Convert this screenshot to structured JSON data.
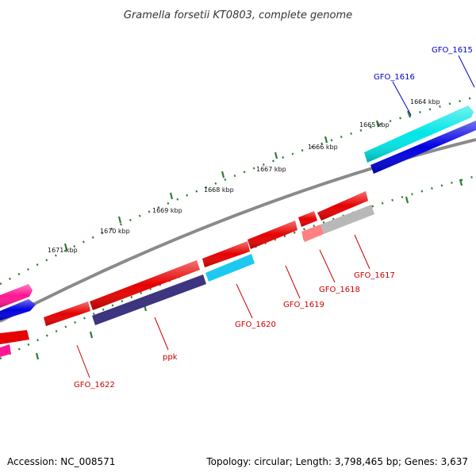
{
  "title": "Gramella forsetii KT0803, complete genome",
  "footer": {
    "accession": "Accession: NC_008571",
    "summary": "Topology: circular; Length: 3,798,465 bp; Genes: 3,637"
  },
  "colors": {
    "forward_label": "#0000cc",
    "reverse_label": "#cc0000",
    "backbone": "#8a8a8a",
    "tick": "#2e7d32"
  },
  "kbp_labels": [
    "1664 kbp",
    "1665 kbp",
    "1666 kbp",
    "1667 kbp",
    "1668 kbp",
    "1669 kbp",
    "1670 kbp",
    "1671 kbp"
  ],
  "gene_labels": [
    {
      "text": "GFO_1615",
      "strand": "forward"
    },
    {
      "text": "GFO_1616",
      "strand": "forward"
    },
    {
      "text": "GFO_1617",
      "strand": "reverse"
    },
    {
      "text": "GFO_1618",
      "strand": "reverse"
    },
    {
      "text": "GFO_1619",
      "strand": "reverse"
    },
    {
      "text": "GFO_1620",
      "strand": "reverse"
    },
    {
      "text": "ppk",
      "strand": "reverse"
    },
    {
      "text": "GFO_1622",
      "strand": "reverse"
    }
  ]
}
